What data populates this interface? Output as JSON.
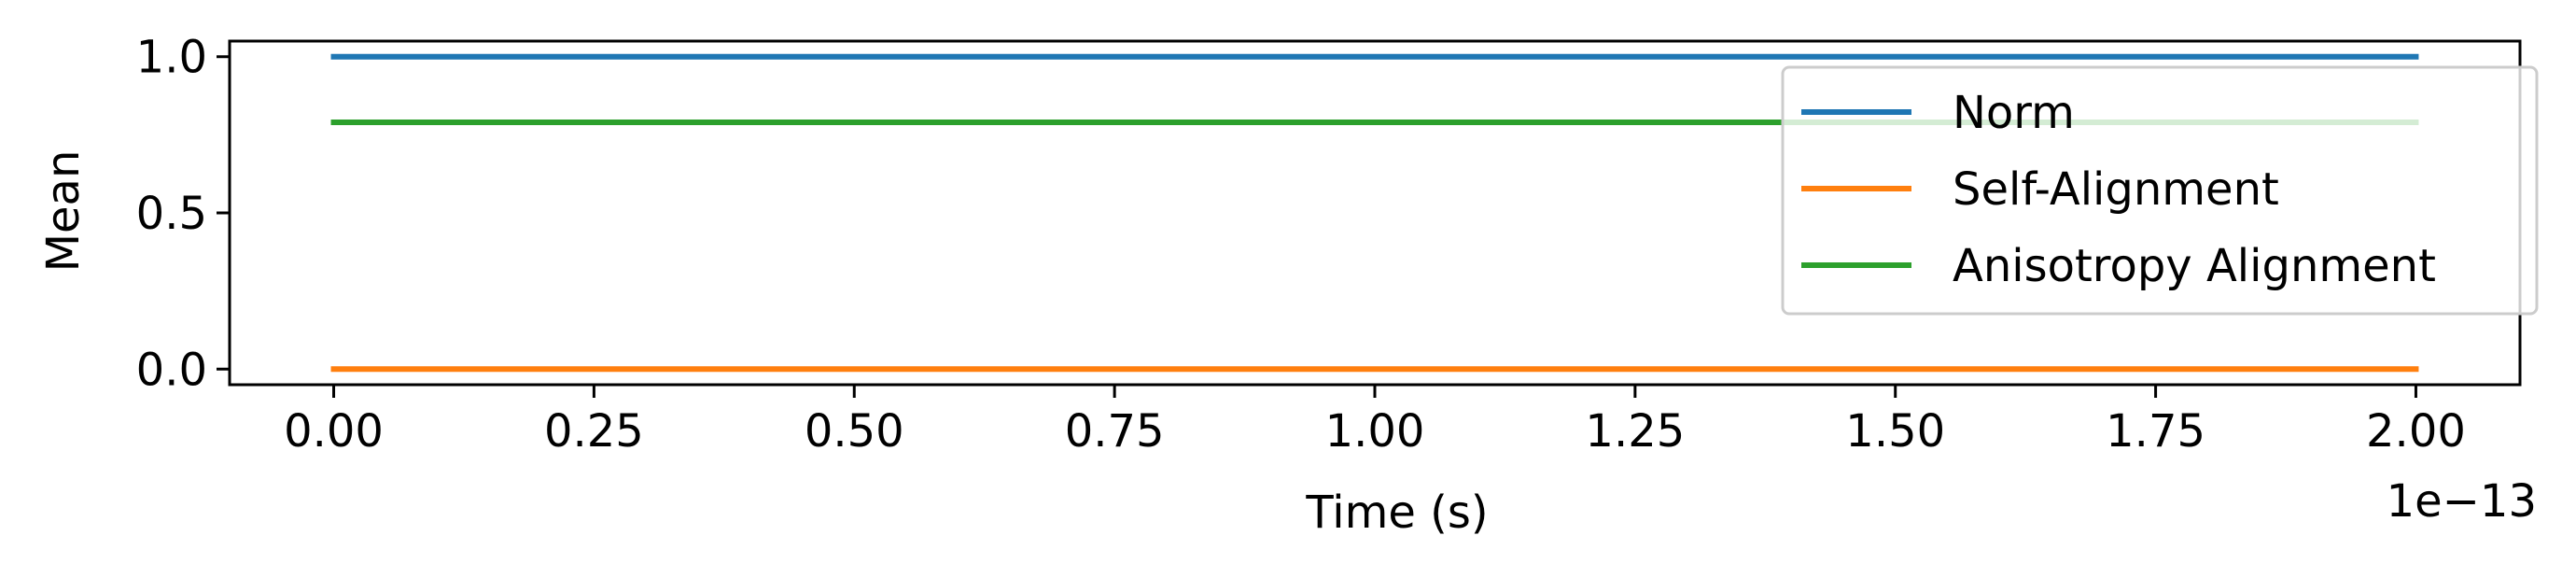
{
  "chart_data": {
    "type": "line",
    "title": "",
    "xlabel": "Time (s)",
    "ylabel": "Mean",
    "x_offset_label": "1e−13",
    "xlim": [
      -0.1,
      2.1
    ],
    "ylim": [
      -0.05,
      1.05
    ],
    "x_ticks": [
      0.0,
      0.25,
      0.5,
      0.75,
      1.0,
      1.25,
      1.5,
      1.75,
      2.0
    ],
    "x_tick_labels": [
      "0.00",
      "0.25",
      "0.50",
      "0.75",
      "1.00",
      "1.25",
      "1.50",
      "1.75",
      "2.00"
    ],
    "y_ticks": [
      0.0,
      0.5,
      1.0
    ],
    "y_tick_labels": [
      "0.0",
      "0.5",
      "1.0"
    ],
    "grid": false,
    "legend_position": "top-right",
    "series": [
      {
        "name": "Norm",
        "color": "#1f77b4",
        "x": [
          0.0,
          2.0
        ],
        "values": [
          1.0,
          1.0
        ]
      },
      {
        "name": "Self-Alignment",
        "color": "#ff7f0e",
        "x": [
          0.0,
          2.0
        ],
        "values": [
          0.0,
          0.0
        ]
      },
      {
        "name": "Anisotropy Alignment",
        "color": "#2ca02c",
        "x": [
          0.0,
          2.0
        ],
        "values": [
          0.79,
          0.79
        ]
      }
    ]
  }
}
